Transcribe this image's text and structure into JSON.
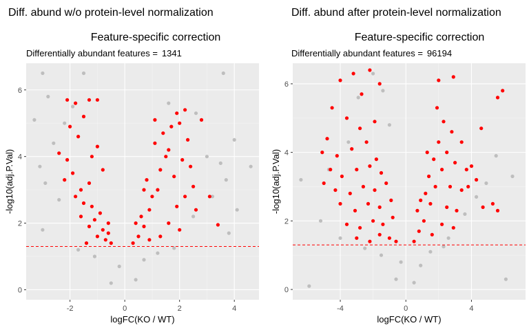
{
  "colors": {
    "panel_bg": "#EBEBEB",
    "grid_major": "#FFFFFF",
    "point_ns": "#BEBEBE",
    "point_sig": "#FF0000",
    "threshold_line": "#FF0000"
  },
  "chart_data": [
    {
      "type": "scatter",
      "title": "Diff. abund w/o protein-level normalization",
      "subtitle": "Feature-specific correction",
      "caption_label": "Differentially abundant features =",
      "caption_value": "1341",
      "xlabel": "logFC(KO / WT)",
      "ylabel": "-log10(adj.P.Val)",
      "xlim": [
        -3.6,
        4.9
      ],
      "ylim": [
        -0.3,
        6.8
      ],
      "xticks": [
        -2,
        0,
        2,
        4
      ],
      "xtick_labels": [
        "-2",
        "0",
        "2",
        "4"
      ],
      "yticks": [
        0,
        2,
        4,
        6
      ],
      "ytick_labels": [
        "0",
        "2",
        "4",
        "6"
      ],
      "grid": true,
      "threshold_y": 1.3,
      "series": [
        {
          "values": [
            [
              -3.0,
              6.5
            ],
            [
              -2.8,
              5.8
            ],
            [
              -3.3,
              5.1
            ],
            [
              -2.6,
              4.4
            ],
            [
              -3.1,
              3.7
            ],
            [
              -2.9,
              3.2
            ],
            [
              -2.4,
              2.7
            ],
            [
              -3.0,
              1.8
            ],
            [
              -1.5,
              6.5
            ],
            [
              -1.9,
              5.5
            ],
            [
              -2.2,
              5.0
            ],
            [
              1.6,
              5.6
            ],
            [
              2.6,
              5.3
            ],
            [
              3.6,
              6.5
            ],
            [
              4.0,
              4.5
            ],
            [
              3.0,
              4.0
            ],
            [
              3.5,
              3.8
            ],
            [
              4.6,
              3.7
            ],
            [
              3.7,
              3.3
            ],
            [
              3.2,
              2.8
            ],
            [
              4.1,
              2.4
            ],
            [
              2.5,
              2.2
            ],
            [
              3.8,
              1.7
            ],
            [
              -0.5,
              0.2
            ],
            [
              0.4,
              0.3
            ],
            [
              -0.2,
              0.7
            ],
            [
              0.7,
              0.9
            ],
            [
              -1.1,
              1.0
            ],
            [
              1.2,
              1.1
            ],
            [
              -1.7,
              1.2
            ],
            [
              1.8,
              1.25
            ]
          ]
        },
        {
          "values": [
            [
              -2.1,
              5.7
            ],
            [
              -1.8,
              5.6
            ],
            [
              -1.3,
              5.7
            ],
            [
              -1.0,
              5.7
            ],
            [
              -1.5,
              5.2
            ],
            [
              -2.0,
              4.9
            ],
            [
              -1.7,
              4.6
            ],
            [
              -2.4,
              4.1
            ],
            [
              -2.1,
              3.9
            ],
            [
              -1.9,
              3.5
            ],
            [
              -2.2,
              3.3
            ],
            [
              -1.6,
              3.0
            ],
            [
              -1.3,
              3.2
            ],
            [
              -1.8,
              2.8
            ],
            [
              -1.5,
              2.6
            ],
            [
              -1.2,
              2.5
            ],
            [
              -1.6,
              2.2
            ],
            [
              -1.1,
              2.1
            ],
            [
              -0.9,
              2.3
            ],
            [
              -1.3,
              1.9
            ],
            [
              -0.8,
              1.8
            ],
            [
              -1.0,
              1.6
            ],
            [
              -0.7,
              1.5
            ],
            [
              -0.5,
              1.4
            ],
            [
              -1.4,
              1.4
            ],
            [
              -0.6,
              1.7
            ],
            [
              -1.2,
              4.0
            ],
            [
              -0.8,
              3.6
            ],
            [
              -1.0,
              4.3
            ],
            [
              -0.6,
              2.0
            ],
            [
              0.3,
              1.4
            ],
            [
              0.5,
              1.6
            ],
            [
              0.7,
              1.9
            ],
            [
              0.6,
              2.2
            ],
            [
              0.9,
              2.4
            ],
            [
              1.0,
              2.8
            ],
            [
              1.2,
              3.0
            ],
            [
              0.8,
              3.3
            ],
            [
              1.3,
              3.6
            ],
            [
              1.5,
              4.0
            ],
            [
              1.1,
              4.4
            ],
            [
              1.4,
              4.7
            ],
            [
              1.7,
              4.9
            ],
            [
              1.9,
              5.3
            ],
            [
              2.2,
              5.4
            ],
            [
              2.0,
              5.0
            ],
            [
              1.6,
              4.2
            ],
            [
              2.3,
              4.5
            ],
            [
              2.1,
              3.9
            ],
            [
              1.8,
              3.4
            ],
            [
              2.4,
              3.7
            ],
            [
              2.5,
              3.1
            ],
            [
              2.2,
              2.8
            ],
            [
              1.9,
              2.5
            ],
            [
              2.6,
              2.4
            ],
            [
              1.6,
              2.0
            ],
            [
              2.0,
              1.8
            ],
            [
              1.3,
              1.6
            ],
            [
              0.9,
              1.5
            ],
            [
              2.8,
              5.1
            ],
            [
              3.1,
              2.8
            ],
            [
              3.4,
              1.95
            ],
            [
              1.1,
              5.1
            ],
            [
              0.7,
              3.0
            ],
            [
              0.4,
              2.0
            ]
          ]
        }
      ]
    },
    {
      "type": "scatter",
      "title": "Diff. abund after protein-level normalization",
      "subtitle": "Feature-specific correction",
      "caption_label": "Differentially abundant features =",
      "caption_value": "96194",
      "xlabel": "logFC(KO / WT)",
      "ylabel": "-log10(adj.P.Val)",
      "xlim": [
        -6.9,
        7.3
      ],
      "ylim": [
        -0.3,
        6.6
      ],
      "xticks": [
        -4,
        0,
        4
      ],
      "xtick_labels": [
        "-4",
        "0",
        "4"
      ],
      "yticks": [
        0,
        2,
        4,
        6
      ],
      "ytick_labels": [
        "0",
        "2",
        "4",
        "6"
      ],
      "grid": true,
      "threshold_y": 1.3,
      "series": [
        {
          "values": [
            [
              -6.4,
              3.2
            ],
            [
              -5.2,
              2.0
            ],
            [
              -4.7,
              3.5
            ],
            [
              -4.0,
              1.5
            ],
            [
              -3.5,
              4.3
            ],
            [
              -2.9,
              5.6
            ],
            [
              -2.0,
              6.3
            ],
            [
              -1.4,
              5.8
            ],
            [
              -1.0,
              4.8
            ],
            [
              6.5,
              3.3
            ],
            [
              5.5,
              3.9
            ],
            [
              4.9,
              3.1
            ],
            [
              4.3,
              2.7
            ],
            [
              3.6,
              2.2
            ],
            [
              2.6,
              1.5
            ],
            [
              -0.6,
              0.3
            ],
            [
              0.5,
              0.2
            ],
            [
              -0.3,
              0.8
            ],
            [
              0.9,
              0.7
            ],
            [
              -1.5,
              1.0
            ],
            [
              1.5,
              1.1
            ],
            [
              -2.5,
              1.2
            ],
            [
              2.3,
              1.25
            ],
            [
              -5.9,
              0.1
            ],
            [
              6.1,
              0.3
            ]
          ]
        },
        {
          "values": [
            [
              -4.5,
              5.3
            ],
            [
              -4.0,
              6.1
            ],
            [
              -3.2,
              6.3
            ],
            [
              -2.2,
              6.4
            ],
            [
              -1.6,
              6.0
            ],
            [
              -2.7,
              5.7
            ],
            [
              -3.6,
              5.0
            ],
            [
              -2.8,
              4.7
            ],
            [
              -1.9,
              4.9
            ],
            [
              -4.8,
              4.4
            ],
            [
              -5.1,
              4.0
            ],
            [
              -4.2,
              3.9
            ],
            [
              -3.3,
              4.1
            ],
            [
              -2.4,
              4.3
            ],
            [
              -1.8,
              3.8
            ],
            [
              -4.6,
              3.5
            ],
            [
              -3.9,
              3.3
            ],
            [
              -3.0,
              3.5
            ],
            [
              -2.2,
              3.6
            ],
            [
              -1.5,
              3.4
            ],
            [
              -5.0,
              3.1
            ],
            [
              -4.3,
              2.9
            ],
            [
              -3.4,
              2.8
            ],
            [
              -2.6,
              3.0
            ],
            [
              -1.9,
              2.9
            ],
            [
              -1.2,
              3.1
            ],
            [
              -4.0,
              2.5
            ],
            [
              -3.1,
              2.3
            ],
            [
              -2.3,
              2.5
            ],
            [
              -1.6,
              2.4
            ],
            [
              -0.9,
              2.6
            ],
            [
              -3.6,
              1.9
            ],
            [
              -2.8,
              1.8
            ],
            [
              -2.0,
              2.0
            ],
            [
              -1.4,
              1.9
            ],
            [
              -0.8,
              2.1
            ],
            [
              -3.0,
              1.5
            ],
            [
              -2.2,
              1.4
            ],
            [
              -1.6,
              1.6
            ],
            [
              -1.0,
              1.5
            ],
            [
              -0.6,
              1.4
            ],
            [
              0.5,
              1.4
            ],
            [
              0.8,
              1.7
            ],
            [
              1.1,
              2.0
            ],
            [
              0.7,
              2.3
            ],
            [
              1.5,
              2.5
            ],
            [
              1.2,
              2.8
            ],
            [
              1.8,
              3.0
            ],
            [
              1.4,
              3.3
            ],
            [
              2.2,
              3.5
            ],
            [
              1.7,
              3.8
            ],
            [
              2.5,
              4.0
            ],
            [
              2.0,
              4.3
            ],
            [
              2.8,
              4.6
            ],
            [
              2.3,
              4.9
            ],
            [
              1.9,
              5.3
            ],
            [
              2.0,
              6.1
            ],
            [
              2.9,
              6.2
            ],
            [
              3.4,
              4.3
            ],
            [
              3.0,
              3.7
            ],
            [
              3.7,
              3.5
            ],
            [
              2.7,
              3.0
            ],
            [
              3.4,
              2.9
            ],
            [
              2.5,
              2.4
            ],
            [
              3.1,
              2.3
            ],
            [
              2.2,
              1.9
            ],
            [
              2.9,
              1.8
            ],
            [
              1.6,
              1.6
            ],
            [
              3.8,
              3.0
            ],
            [
              4.6,
              4.7
            ],
            [
              5.6,
              5.6
            ],
            [
              5.9,
              5.8
            ],
            [
              5.6,
              2.3
            ],
            [
              5.3,
              2.5
            ],
            [
              4.7,
              2.4
            ],
            [
              4.3,
              3.2
            ],
            [
              4.0,
              3.6
            ],
            [
              1.3,
              4.0
            ],
            [
              0.9,
              2.6
            ]
          ]
        }
      ]
    }
  ]
}
